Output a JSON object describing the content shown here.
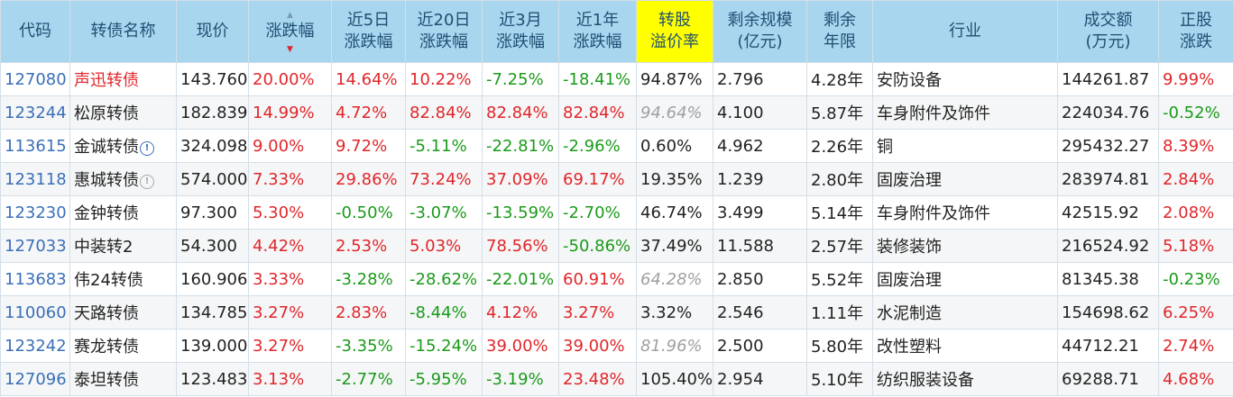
{
  "headers": [
    {
      "l1": "代码",
      "l2": ""
    },
    {
      "l1": "转债名称",
      "l2": ""
    },
    {
      "l1": "现价",
      "l2": ""
    },
    {
      "l1": "涨跌幅",
      "l2": ""
    },
    {
      "l1": "近5日",
      "l2": "涨跌幅"
    },
    {
      "l1": "近20日",
      "l2": "涨跌幅"
    },
    {
      "l1": "近3月",
      "l2": "涨跌幅"
    },
    {
      "l1": "近1年",
      "l2": "涨跌幅"
    },
    {
      "l1": "转股",
      "l2": "溢价率"
    },
    {
      "l1": "剩余规模",
      "l2": "(亿元)"
    },
    {
      "l1": "剩余",
      "l2": "年限"
    },
    {
      "l1": "行业",
      "l2": ""
    },
    {
      "l1": "成交额",
      "l2": "(万元)"
    },
    {
      "l1": "正股",
      "l2": "涨跌"
    }
  ],
  "colors": {
    "header_bg": "#a8d6ef",
    "highlight": "#ffff00",
    "up": "#e0262a",
    "down": "#1a9a1a",
    "code": "#3a6fb8"
  },
  "rows": [
    {
      "code": "127080",
      "name": "声迅转债",
      "name_red": true,
      "icon": "",
      "price": "143.760",
      "chg": "20.00%",
      "d5": "14.64%",
      "d20": "10.22%",
      "m3": "-7.25%",
      "y1": "-18.41%",
      "premium": "94.87%",
      "premium_muted": false,
      "scale": "2.796",
      "years": "4.28年",
      "industry": "安防设备",
      "turnover": "144261.87",
      "stock_chg": "9.99%"
    },
    {
      "code": "123244",
      "name": "松原转债",
      "name_red": false,
      "icon": "",
      "price": "182.839",
      "chg": "14.99%",
      "d5": "4.72%",
      "d20": "82.84%",
      "m3": "82.84%",
      "y1": "82.84%",
      "premium": "94.64%",
      "premium_muted": true,
      "scale": "4.100",
      "years": "5.87年",
      "industry": "车身附件及饰件",
      "turnover": "224034.76",
      "stock_chg": "-0.52%"
    },
    {
      "code": "113615",
      "name": "金诚转债",
      "name_red": false,
      "icon": "info",
      "price": "324.098",
      "chg": "9.00%",
      "d5": "9.72%",
      "d20": "-5.11%",
      "m3": "-22.81%",
      "y1": "-2.96%",
      "premium": "0.60%",
      "premium_muted": false,
      "scale": "4.962",
      "years": "2.26年",
      "industry": "铜",
      "turnover": "295432.27",
      "stock_chg": "8.39%"
    },
    {
      "code": "123118",
      "name": "惠城转债",
      "name_red": false,
      "icon": "info-grey",
      "price": "574.000",
      "chg": "7.33%",
      "d5": "29.86%",
      "d20": "73.24%",
      "m3": "37.09%",
      "y1": "69.17%",
      "premium": "19.35%",
      "premium_muted": false,
      "scale": "1.239",
      "years": "2.80年",
      "industry": "固废治理",
      "turnover": "283974.81",
      "stock_chg": "2.84%"
    },
    {
      "code": "123230",
      "name": "金钟转债",
      "name_red": false,
      "icon": "",
      "price": "97.300",
      "chg": "5.30%",
      "d5": "-0.50%",
      "d20": "-3.07%",
      "m3": "-13.59%",
      "y1": "-2.70%",
      "premium": "46.74%",
      "premium_muted": false,
      "scale": "3.499",
      "years": "5.14年",
      "industry": "车身附件及饰件",
      "turnover": "42515.92",
      "stock_chg": "2.08%"
    },
    {
      "code": "127033",
      "name": "中装转2",
      "name_red": false,
      "icon": "",
      "price": "54.300",
      "chg": "4.42%",
      "d5": "2.53%",
      "d20": "5.03%",
      "m3": "78.56%",
      "y1": "-50.86%",
      "premium": "37.49%",
      "premium_muted": false,
      "scale": "11.588",
      "years": "2.57年",
      "industry": "装修装饰",
      "turnover": "216524.92",
      "stock_chg": "5.18%"
    },
    {
      "code": "113683",
      "name": "伟24转债",
      "name_red": false,
      "icon": "",
      "price": "160.906",
      "chg": "3.33%",
      "d5": "-3.28%",
      "d20": "-28.62%",
      "m3": "-22.01%",
      "y1": "60.91%",
      "premium": "64.28%",
      "premium_muted": true,
      "scale": "2.850",
      "years": "5.52年",
      "industry": "固废治理",
      "turnover": "81345.38",
      "stock_chg": "-0.23%"
    },
    {
      "code": "110060",
      "name": "天路转债",
      "name_red": false,
      "icon": "",
      "price": "134.785",
      "chg": "3.27%",
      "d5": "2.83%",
      "d20": "-8.44%",
      "m3": "4.12%",
      "y1": "3.27%",
      "premium": "3.32%",
      "premium_muted": false,
      "scale": "2.546",
      "years": "1.11年",
      "industry": "水泥制造",
      "turnover": "154698.62",
      "stock_chg": "6.25%"
    },
    {
      "code": "123242",
      "name": "赛龙转债",
      "name_red": false,
      "icon": "",
      "price": "139.000",
      "chg": "3.27%",
      "d5": "-3.35%",
      "d20": "-15.24%",
      "m3": "39.00%",
      "y1": "39.00%",
      "premium": "81.96%",
      "premium_muted": true,
      "scale": "2.500",
      "years": "5.80年",
      "industry": "改性塑料",
      "turnover": "44712.21",
      "stock_chg": "2.74%"
    },
    {
      "code": "127096",
      "name": "泰坦转债",
      "name_red": false,
      "icon": "",
      "price": "123.483",
      "chg": "3.13%",
      "d5": "-2.77%",
      "d20": "-5.95%",
      "m3": "-3.19%",
      "y1": "23.48%",
      "premium": "105.40%",
      "premium_muted": false,
      "scale": "2.954",
      "years": "5.10年",
      "industry": "纺织服装设备",
      "turnover": "69288.71",
      "stock_chg": "4.68%"
    }
  ]
}
